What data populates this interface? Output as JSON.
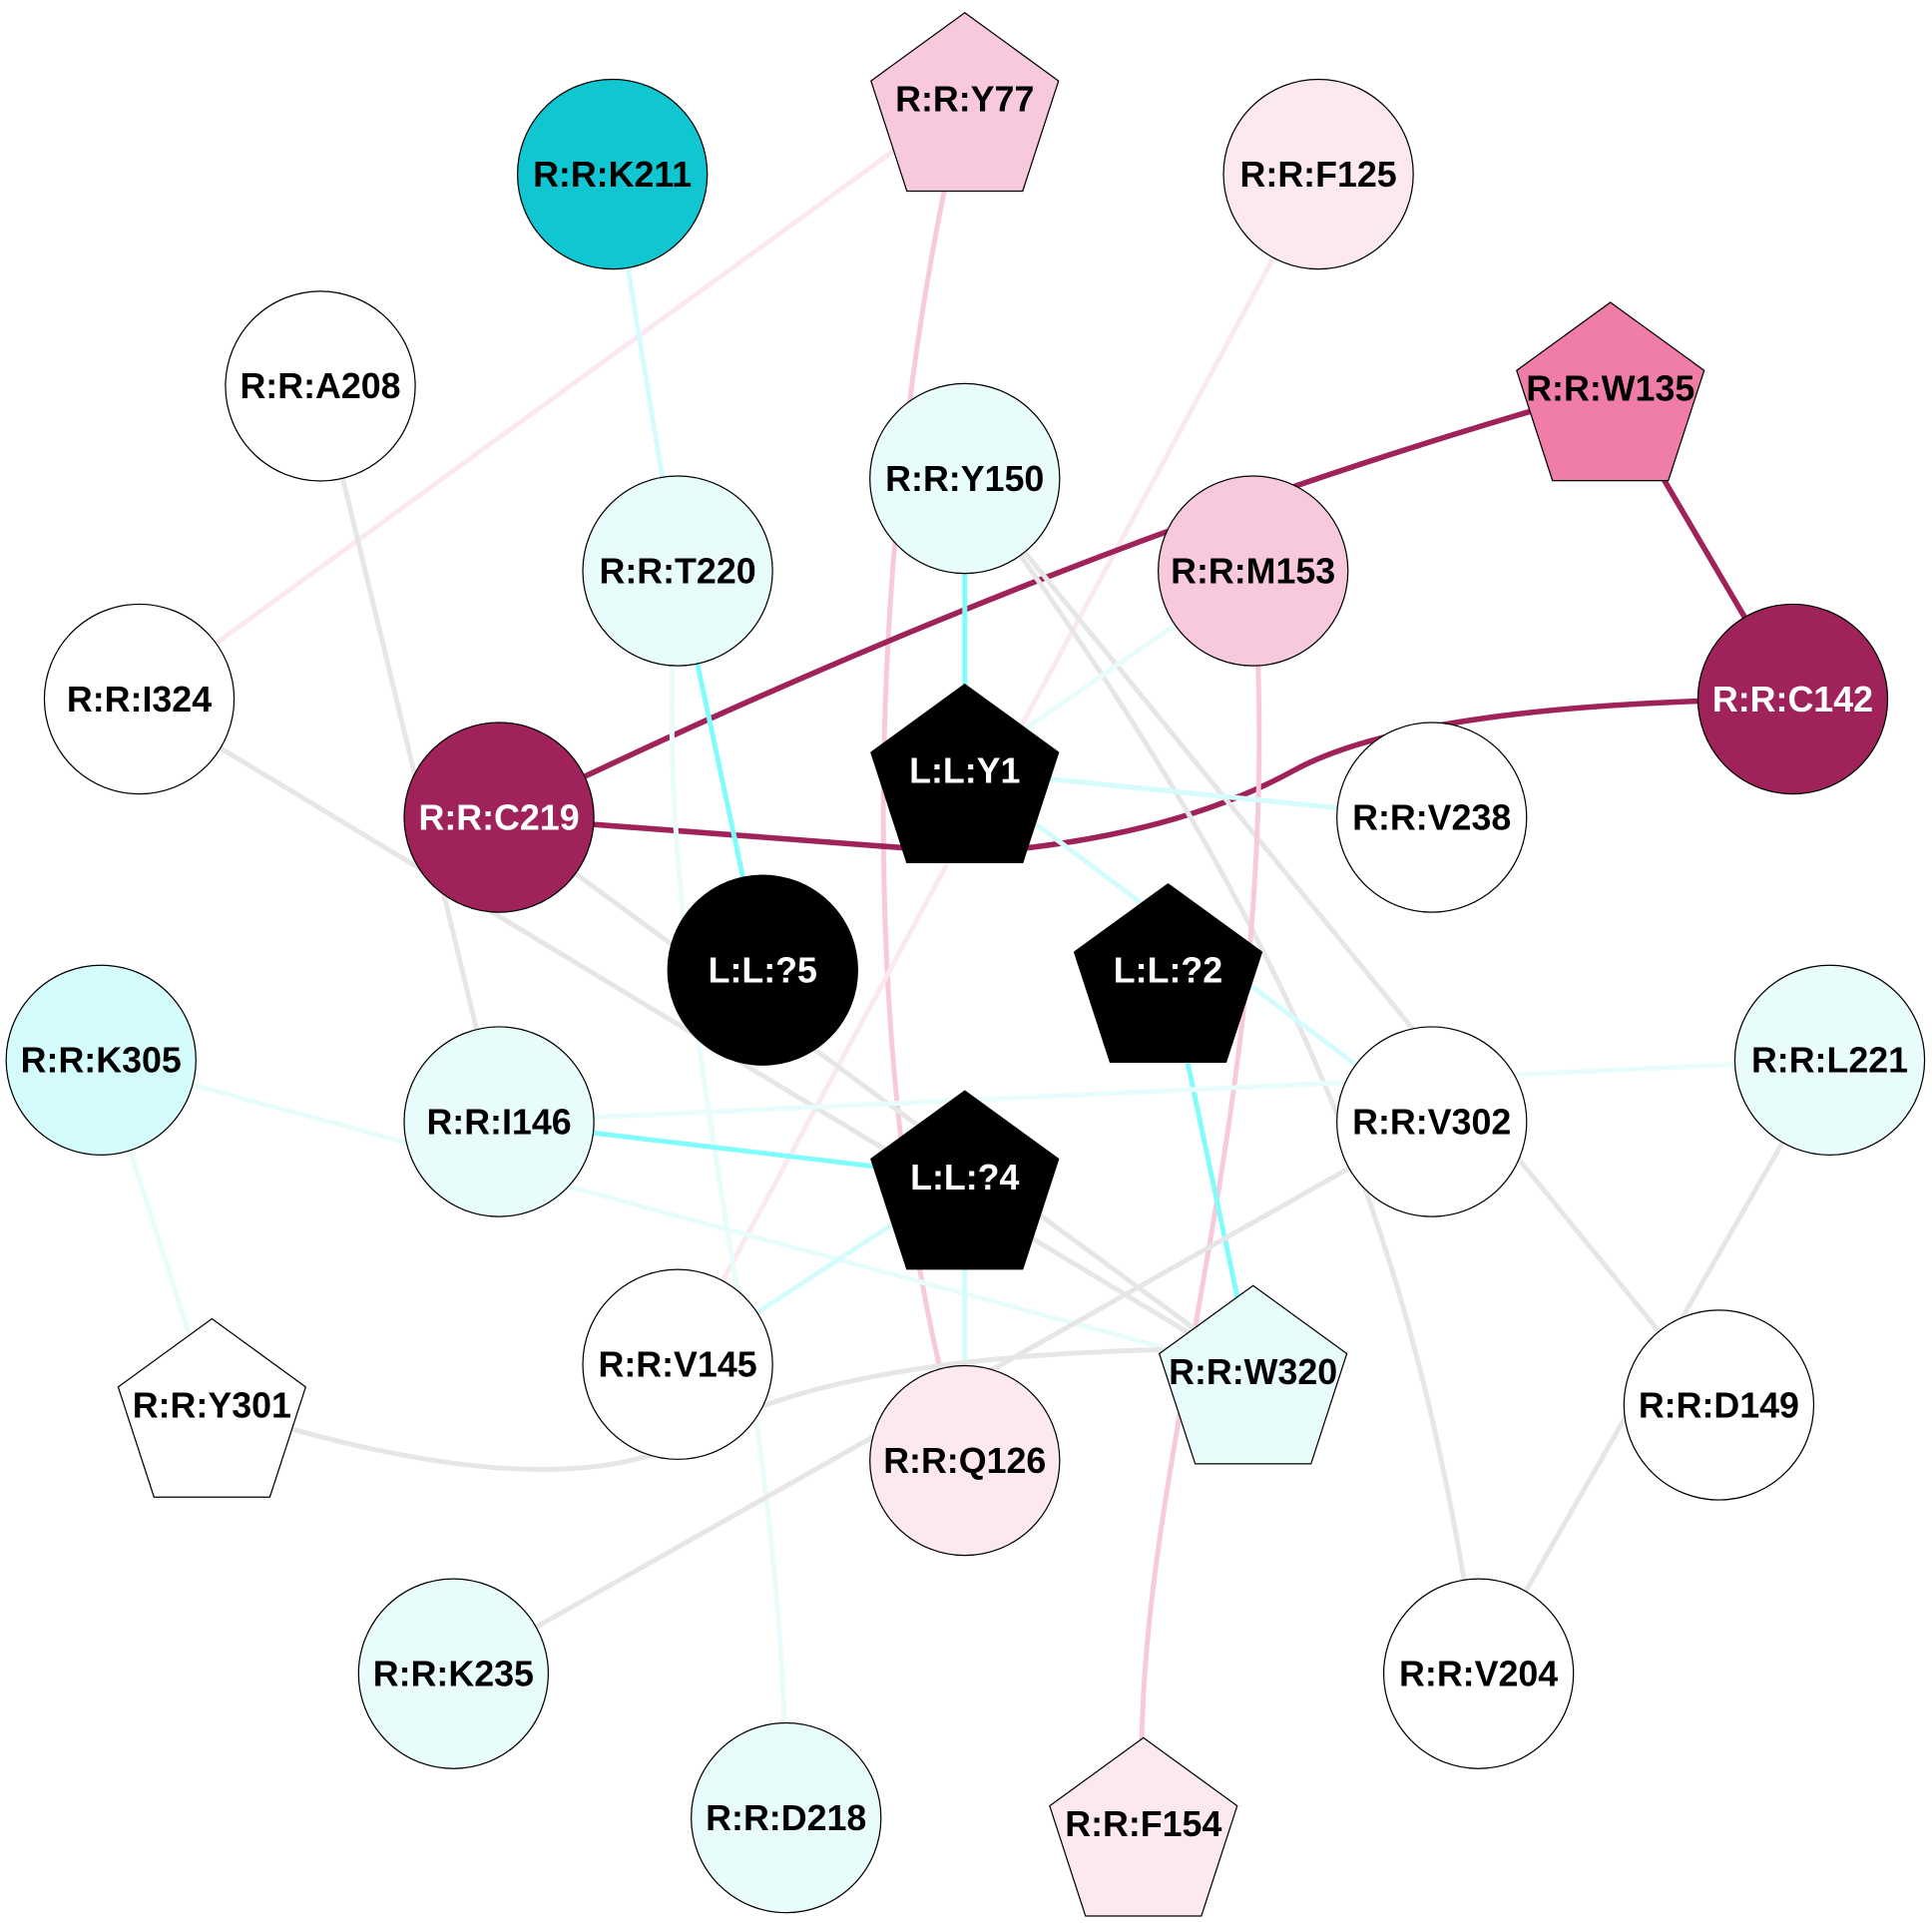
{
  "nodes": [
    {
      "id": "Y77",
      "label": "R:R:Y77",
      "shape": "pentagon",
      "fill": "#f8c8dc",
      "text": "#000000"
    },
    {
      "id": "K211",
      "label": "R:R:K211",
      "shape": "circle",
      "fill": "#10c6d0",
      "text": "#000000"
    },
    {
      "id": "F125",
      "label": "R:R:F125",
      "shape": "circle",
      "fill": "#fbe8f0",
      "text": "#000000"
    },
    {
      "id": "A208",
      "label": "R:R:A208",
      "shape": "circle",
      "fill": "#ffffff",
      "text": "#000000"
    },
    {
      "id": "W135",
      "label": "R:R:W135",
      "shape": "pentagon",
      "fill": "#f07ca8",
      "text": "#000000"
    },
    {
      "id": "Y150",
      "label": "R:R:Y150",
      "shape": "circle",
      "fill": "#e8fcfc",
      "text": "#000000"
    },
    {
      "id": "T220",
      "label": "R:R:T220",
      "shape": "circle",
      "fill": "#e8fcfc",
      "text": "#000000"
    },
    {
      "id": "M153",
      "label": "R:R:M153",
      "shape": "circle",
      "fill": "#f8c8dc",
      "text": "#000000"
    },
    {
      "id": "I324",
      "label": "R:R:I324",
      "shape": "circle",
      "fill": "#ffffff",
      "text": "#000000"
    },
    {
      "id": "C142",
      "label": "R:R:C142",
      "shape": "circle",
      "fill": "#a0225a",
      "text": "#ffffff"
    },
    {
      "id": "C219",
      "label": "R:R:C219",
      "shape": "circle",
      "fill": "#a0225a",
      "text": "#ffffff"
    },
    {
      "id": "LY1",
      "label": "L:L:Y1",
      "shape": "pentagon",
      "fill": "#000000",
      "text": "#ffffff"
    },
    {
      "id": "V238",
      "label": "R:R:V238",
      "shape": "circle",
      "fill": "#ffffff",
      "text": "#000000"
    },
    {
      "id": "L5",
      "label": "L:L:?5",
      "shape": "circle",
      "fill": "#000000",
      "text": "#ffffff"
    },
    {
      "id": "L2",
      "label": "L:L:?2",
      "shape": "pentagon",
      "fill": "#000000",
      "text": "#ffffff"
    },
    {
      "id": "K305",
      "label": "R:R:K305",
      "shape": "circle",
      "fill": "#d4fcfc",
      "text": "#000000"
    },
    {
      "id": "L221",
      "label": "R:R:L221",
      "shape": "circle",
      "fill": "#e8fcfc",
      "text": "#000000"
    },
    {
      "id": "I146",
      "label": "R:R:I146",
      "shape": "circle",
      "fill": "#e8fcfc",
      "text": "#000000"
    },
    {
      "id": "V302",
      "label": "R:R:V302",
      "shape": "circle",
      "fill": "#ffffff",
      "text": "#000000"
    },
    {
      "id": "L4",
      "label": "L:L:?4",
      "shape": "pentagon",
      "fill": "#000000",
      "text": "#ffffff"
    },
    {
      "id": "V145",
      "label": "R:R:V145",
      "shape": "circle",
      "fill": "#ffffff",
      "text": "#000000"
    },
    {
      "id": "W320",
      "label": "R:R:W320",
      "shape": "pentagon",
      "fill": "#e8fcfc",
      "text": "#000000"
    },
    {
      "id": "Y301",
      "label": "R:R:Y301",
      "shape": "pentagon",
      "fill": "#ffffff",
      "text": "#000000"
    },
    {
      "id": "D149",
      "label": "R:R:D149",
      "shape": "circle",
      "fill": "#ffffff",
      "text": "#000000"
    },
    {
      "id": "Q126",
      "label": "R:R:Q126",
      "shape": "circle",
      "fill": "#fbe8f0",
      "text": "#000000"
    },
    {
      "id": "K235",
      "label": "R:R:K235",
      "shape": "circle",
      "fill": "#e8fcfc",
      "text": "#000000"
    },
    {
      "id": "V204",
      "label": "R:R:V204",
      "shape": "circle",
      "fill": "#ffffff",
      "text": "#000000"
    },
    {
      "id": "D218",
      "label": "R:R:D218",
      "shape": "circle",
      "fill": "#e8fcfc",
      "text": "#000000"
    },
    {
      "id": "F154",
      "label": "R:R:F154",
      "shape": "pentagon",
      "fill": "#fbe8f0",
      "text": "#000000"
    }
  ],
  "edges": [
    {
      "source": "Y77",
      "target": "I324",
      "color": "#fbe8f0"
    },
    {
      "source": "Y77",
      "target": "Q126",
      "color": "#f8c8dc"
    },
    {
      "source": "K211",
      "target": "T220",
      "color": "#d4fcfc"
    },
    {
      "source": "F125",
      "target": "V145",
      "color": "#fbe8f0"
    },
    {
      "source": "A208",
      "target": "I146",
      "color": "#e6e6e6"
    },
    {
      "source": "W135",
      "target": "C219",
      "color": "#a0225a"
    },
    {
      "source": "W135",
      "target": "C142",
      "color": "#a0225a"
    },
    {
      "source": "C142",
      "target": "C219",
      "color": "#a0225a"
    },
    {
      "source": "Y150",
      "target": "LY1",
      "color": "#80fcfc"
    },
    {
      "source": "Y150",
      "target": "V204",
      "color": "#e6e6e6"
    },
    {
      "source": "Y150",
      "target": "D149",
      "color": "#e6e6e6"
    },
    {
      "source": "T220",
      "target": "L5",
      "color": "#80fcfc"
    },
    {
      "source": "T220",
      "target": "D218",
      "color": "#e8fcfc"
    },
    {
      "source": "M153",
      "target": "LY1",
      "color": "#e8fcfc"
    },
    {
      "source": "M153",
      "target": "F154",
      "color": "#f8c8dc"
    },
    {
      "source": "I324",
      "target": "W320",
      "color": "#e6e6e6"
    },
    {
      "source": "C219",
      "target": "W320",
      "color": "#e6e6e6"
    },
    {
      "source": "LY1",
      "target": "V238",
      "color": "#d4fcfc"
    },
    {
      "source": "LY1",
      "target": "V302",
      "color": "#d4fcfc"
    },
    {
      "source": "L2",
      "target": "W320",
      "color": "#80fcfc"
    },
    {
      "source": "K305",
      "target": "Y301",
      "color": "#e8fcfc"
    },
    {
      "source": "K305",
      "target": "W320",
      "color": "#e8fcfc"
    },
    {
      "source": "I146",
      "target": "L221",
      "color": "#e8fcfc"
    },
    {
      "source": "I146",
      "target": "L4",
      "color": "#80fcfc"
    },
    {
      "source": "L4",
      "target": "V145",
      "color": "#d4fcfc"
    },
    {
      "source": "L4",
      "target": "Q126",
      "color": "#d4fcfc"
    },
    {
      "source": "Y301",
      "target": "W320",
      "color": "#e6e6e6"
    },
    {
      "source": "V302",
      "target": "K235",
      "color": "#e6e6e6"
    },
    {
      "source": "L221",
      "target": "V204",
      "color": "#e6e6e6"
    }
  ]
}
